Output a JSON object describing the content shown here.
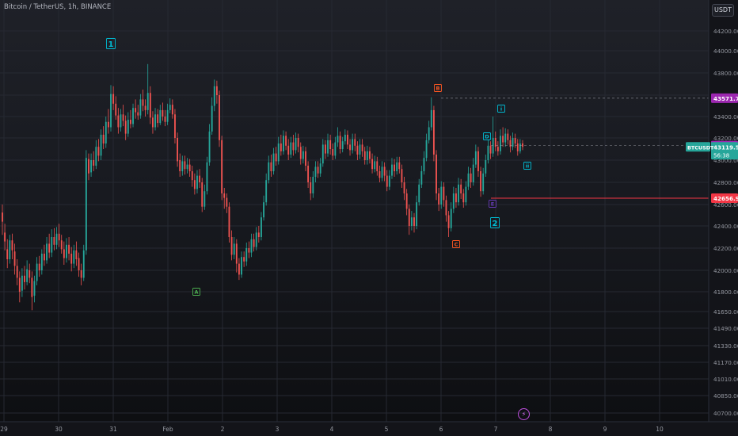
{
  "header": {
    "symbol_title": "Bitcoin / TetherUS, 1h, BINANCE",
    "currency_button": "USDT",
    "event_icon": "lightning-icon"
  },
  "chart_data": {
    "type": "candlestick",
    "symbol": "BTCUSDT",
    "interval": "1h",
    "exchange": "BINANCE",
    "ylim": [
      40650,
      44400
    ],
    "y_ticks": [
      "44200.00",
      "44000.00",
      "43800.00",
      "43600.00",
      "43400.00",
      "43200.00",
      "43000.00",
      "42800.00",
      "42600.00",
      "42400.00",
      "42200.00",
      "42000.00",
      "41800.00",
      "41650.00",
      "41490.00",
      "41330.00",
      "41170.00",
      "41010.00",
      "40850.00",
      "40700.00"
    ],
    "x_ticks": [
      "29",
      "30",
      "31",
      "Feb",
      "2",
      "3",
      "4",
      "5",
      "6",
      "7",
      "8",
      "9",
      "10"
    ],
    "price_labels": [
      {
        "name": "resistance",
        "text": "43571.74",
        "color": "#9c27b0"
      },
      {
        "name": "level-mid",
        "text": "43131.10",
        "color": "#9c27b0"
      },
      {
        "name": "current",
        "text": "43119.52",
        "symbol": "BTCUSDT",
        "countdown": "56:38",
        "color": "#26a69a"
      },
      {
        "name": "support",
        "text": "42656.92",
        "color": "#f23645"
      }
    ],
    "wave_labels": [
      {
        "text": "1",
        "color": "#00bcd4"
      },
      {
        "text": "A",
        "color": "#4caf50"
      },
      {
        "text": "B",
        "color": "#ff5722"
      },
      {
        "text": "C",
        "color": "#ff5722"
      },
      {
        "text": "D",
        "color": "#00bcd4"
      },
      {
        "text": "E",
        "color": "#673ab7"
      },
      {
        "text": "2",
        "color": "#00bcd4"
      },
      {
        "text": "i",
        "color": "#00bcd4"
      },
      {
        "text": "ii",
        "color": "#00bcd4"
      }
    ],
    "candles": [
      [
        42525,
        42440,
        42600,
        42320
      ],
      [
        42340,
        42260,
        42420,
        42180
      ],
      [
        42190,
        42100,
        42280,
        42020
      ],
      [
        42100,
        42270,
        42320,
        42060
      ],
      [
        42270,
        42180,
        42330,
        42100
      ],
      [
        42170,
        42040,
        42240,
        41960
      ],
      [
        42040,
        41930,
        42100,
        41860
      ],
      [
        41930,
        41800,
        41990,
        41720
      ],
      [
        41810,
        41950,
        42020,
        41760
      ],
      [
        41950,
        41890,
        42040,
        41820
      ],
      [
        41890,
        42010,
        42090,
        41860
      ],
      [
        42000,
        41930,
        42060,
        41880
      ],
      [
        41930,
        41760,
        41990,
        41660
      ],
      [
        41770,
        41900,
        41950,
        41720
      ],
      [
        41900,
        42060,
        42120,
        41860
      ],
      [
        42060,
        42000,
        42130,
        41940
      ],
      [
        42000,
        42150,
        42190,
        41960
      ],
      [
        42150,
        42090,
        42230,
        42040
      ],
      [
        42090,
        42240,
        42300,
        42060
      ],
      [
        42240,
        42160,
        42330,
        42110
      ],
      [
        42160,
        42300,
        42370,
        42120
      ],
      [
        42300,
        42230,
        42380,
        42180
      ],
      [
        42230,
        42330,
        42390,
        42190
      ],
      [
        42330,
        42270,
        42420,
        42210
      ],
      [
        42270,
        42190,
        42320,
        42150
      ],
      [
        42190,
        42110,
        42260,
        42050
      ],
      [
        42110,
        42230,
        42290,
        42070
      ],
      [
        42230,
        42150,
        42300,
        42090
      ],
      [
        42150,
        42060,
        42210,
        41990
      ],
      [
        42060,
        42180,
        42230,
        42020
      ],
      [
        42180,
        42100,
        42260,
        42040
      ],
      [
        42110,
        42000,
        42160,
        41940
      ],
      [
        42000,
        41930,
        42060,
        41860
      ],
      [
        41930,
        42180,
        42230,
        41900
      ],
      [
        42180,
        43020,
        43090,
        42140
      ],
      [
        43010,
        42880,
        43060,
        42820
      ],
      [
        42890,
        43000,
        43060,
        42850
      ],
      [
        43000,
        42950,
        43080,
        42900
      ],
      [
        42950,
        43120,
        43180,
        42920
      ],
      [
        43120,
        43040,
        43190,
        42990
      ],
      [
        43040,
        43230,
        43280,
        43000
      ],
      [
        43230,
        43150,
        43310,
        43100
      ],
      [
        43150,
        43350,
        43400,
        43110
      ],
      [
        43350,
        43300,
        43470,
        43240
      ],
      [
        43300,
        43610,
        43690,
        43260
      ],
      [
        43610,
        43520,
        43680,
        43460
      ],
      [
        43520,
        43410,
        43590,
        43370
      ],
      [
        43410,
        43300,
        43480,
        43240
      ],
      [
        43300,
        43420,
        43470,
        43260
      ],
      [
        43420,
        43360,
        43510,
        43310
      ],
      [
        43360,
        43240,
        43410,
        43180
      ],
      [
        43240,
        43370,
        43440,
        43210
      ],
      [
        43370,
        43330,
        43460,
        43290
      ],
      [
        43330,
        43480,
        43520,
        43300
      ],
      [
        43480,
        43440,
        43560,
        43380
      ],
      [
        43440,
        43410,
        43510,
        43370
      ],
      [
        43410,
        43560,
        43610,
        43380
      ],
      [
        43560,
        43500,
        43650,
        43450
      ],
      [
        43500,
        43460,
        43560,
        43400
      ],
      [
        43460,
        43620,
        43880,
        43420
      ],
      [
        43620,
        43390,
        43680,
        43330
      ],
      [
        43390,
        43300,
        43450,
        43240
      ],
      [
        43300,
        43420,
        43480,
        43270
      ],
      [
        43420,
        43340,
        43470,
        43300
      ],
      [
        43340,
        43460,
        43510,
        43320
      ],
      [
        43460,
        43400,
        43530,
        43360
      ],
      [
        43400,
        43350,
        43460,
        43310
      ],
      [
        43350,
        43460,
        43520,
        43320
      ],
      [
        43460,
        43510,
        43570,
        43430
      ],
      [
        43510,
        43420,
        43560,
        43380
      ],
      [
        43420,
        43200,
        43470,
        43150
      ],
      [
        43200,
        42990,
        43250,
        42940
      ],
      [
        43000,
        42900,
        43060,
        42850
      ],
      [
        42900,
        42990,
        43040,
        42860
      ],
      [
        42990,
        42920,
        43040,
        42870
      ],
      [
        42920,
        42960,
        43020,
        42880
      ],
      [
        42960,
        42900,
        43010,
        42850
      ],
      [
        42900,
        42820,
        42950,
        42760
      ],
      [
        42820,
        42740,
        42880,
        42690
      ],
      [
        42740,
        42860,
        42910,
        42700
      ],
      [
        42860,
        42800,
        42920,
        42750
      ],
      [
        42800,
        42580,
        42840,
        42530
      ],
      [
        42580,
        42720,
        42780,
        42550
      ],
      [
        42720,
        42980,
        43030,
        42690
      ],
      [
        42980,
        43260,
        43330,
        42950
      ],
      [
        43260,
        43500,
        43580,
        43230
      ],
      [
        43500,
        43680,
        43740,
        43450
      ],
      [
        43680,
        43600,
        43730,
        43520
      ],
      [
        43600,
        43180,
        43640,
        43120
      ],
      [
        43180,
        42700,
        43220,
        42640
      ],
      [
        42700,
        42660,
        42750,
        42560
      ],
      [
        42660,
        42580,
        42700,
        42520
      ],
      [
        42580,
        42300,
        42620,
        42250
      ],
      [
        42300,
        42140,
        42360,
        42090
      ],
      [
        42140,
        42240,
        42300,
        42100
      ],
      [
        42240,
        42060,
        42280,
        41980
      ],
      [
        42060,
        41960,
        42110,
        41910
      ],
      [
        41960,
        42120,
        42170,
        41930
      ],
      [
        42120,
        42080,
        42170,
        42030
      ],
      [
        42080,
        42200,
        42250,
        42040
      ],
      [
        42200,
        42160,
        42260,
        42110
      ],
      [
        42160,
        42280,
        42330,
        42120
      ],
      [
        42280,
        42210,
        42330,
        42170
      ],
      [
        42210,
        42340,
        42390,
        42180
      ],
      [
        42340,
        42300,
        42400,
        42250
      ],
      [
        42300,
        42480,
        42530,
        42270
      ],
      [
        42480,
        42620,
        42680,
        42450
      ],
      [
        42620,
        42820,
        42880,
        42590
      ],
      [
        42820,
        42980,
        43040,
        42790
      ],
      [
        42980,
        42900,
        43050,
        42850
      ],
      [
        42900,
        43060,
        43110,
        42870
      ],
      [
        43060,
        42990,
        43120,
        42950
      ],
      [
        42990,
        43150,
        43210,
        42960
      ],
      [
        43150,
        43080,
        43230,
        43040
      ],
      [
        43080,
        43220,
        43270,
        43050
      ],
      [
        43220,
        43130,
        43260,
        43090
      ],
      [
        43130,
        43050,
        43190,
        43000
      ],
      [
        43050,
        43160,
        43210,
        43020
      ],
      [
        43160,
        43090,
        43230,
        43040
      ],
      [
        43090,
        43200,
        43250,
        43060
      ],
      [
        43200,
        43120,
        43240,
        43070
      ],
      [
        43120,
        43010,
        43160,
        42960
      ],
      [
        43010,
        43080,
        43130,
        42970
      ],
      [
        43080,
        42950,
        43120,
        42900
      ],
      [
        42950,
        42800,
        42990,
        42750
      ],
      [
        42800,
        42700,
        42850,
        42640
      ],
      [
        42700,
        42850,
        42900,
        42660
      ],
      [
        42850,
        42940,
        42990,
        42800
      ],
      [
        42940,
        42880,
        42990,
        42840
      ],
      [
        42880,
        42970,
        43020,
        42850
      ],
      [
        42970,
        43140,
        43190,
        42940
      ],
      [
        43140,
        43060,
        43180,
        43010
      ],
      [
        43060,
        43180,
        43240,
        43030
      ],
      [
        43180,
        43100,
        43230,
        43050
      ],
      [
        43100,
        43040,
        43150,
        43000
      ],
      [
        43040,
        43160,
        43210,
        43010
      ],
      [
        43160,
        43220,
        43300,
        43120
      ],
      [
        43220,
        43100,
        43260,
        43060
      ],
      [
        43100,
        43170,
        43210,
        43070
      ],
      [
        43170,
        43230,
        43280,
        43140
      ],
      [
        43230,
        43140,
        43270,
        43100
      ],
      [
        43140,
        43090,
        43190,
        43040
      ],
      [
        43090,
        43190,
        43240,
        43060
      ],
      [
        43190,
        43130,
        43240,
        43080
      ],
      [
        43130,
        43050,
        43170,
        43000
      ],
      [
        43050,
        43140,
        43190,
        43010
      ],
      [
        43140,
        43080,
        43190,
        43030
      ],
      [
        43080,
        43000,
        43120,
        42960
      ],
      [
        43000,
        43080,
        43130,
        42960
      ],
      [
        43080,
        43010,
        43120,
        42970
      ],
      [
        43010,
        42920,
        43060,
        42880
      ],
      [
        42920,
        42990,
        43040,
        42890
      ],
      [
        42990,
        42900,
        43030,
        42860
      ],
      [
        42900,
        42840,
        42950,
        42800
      ],
      [
        42840,
        42940,
        42990,
        42810
      ],
      [
        42940,
        42860,
        42980,
        42810
      ],
      [
        42860,
        42760,
        42910,
        42720
      ],
      [
        42760,
        42860,
        42910,
        42730
      ],
      [
        42860,
        42960,
        43020,
        42830
      ],
      [
        42960,
        42900,
        43010,
        42850
      ],
      [
        42900,
        42980,
        43030,
        42870
      ],
      [
        42980,
        42920,
        43030,
        42880
      ],
      [
        42920,
        42800,
        42960,
        42750
      ],
      [
        42800,
        42700,
        42850,
        42640
      ],
      [
        42700,
        42560,
        42740,
        42500
      ],
      [
        42560,
        42400,
        42600,
        42320
      ],
      [
        42400,
        42480,
        42540,
        42360
      ],
      [
        42480,
        42400,
        42520,
        42340
      ],
      [
        42400,
        42620,
        42680,
        42370
      ],
      [
        42620,
        42780,
        42830,
        42590
      ],
      [
        42780,
        42900,
        42950,
        42750
      ],
      [
        42900,
        43020,
        43080,
        42870
      ],
      [
        43020,
        43180,
        43240,
        42990
      ],
      [
        43180,
        43300,
        43360,
        43150
      ],
      [
        43300,
        43460,
        43580,
        43270
      ],
      [
        43460,
        43050,
        43500,
        42990
      ],
      [
        43050,
        42700,
        43090,
        42640
      ],
      [
        42700,
        42600,
        42750,
        42540
      ],
      [
        42600,
        42760,
        42810,
        42560
      ],
      [
        42760,
        42640,
        42800,
        42580
      ],
      [
        42640,
        42500,
        42680,
        42440
      ],
      [
        42500,
        42380,
        42540,
        42300
      ],
      [
        42380,
        42560,
        42620,
        42350
      ],
      [
        42560,
        42700,
        42760,
        42520
      ],
      [
        42700,
        42620,
        42750,
        42570
      ],
      [
        42620,
        42780,
        42840,
        42590
      ],
      [
        42780,
        42700,
        42830,
        42650
      ],
      [
        42700,
        42620,
        42740,
        42570
      ],
      [
        42620,
        42760,
        42810,
        42590
      ],
      [
        42760,
        42880,
        42940,
        42730
      ],
      [
        42880,
        42800,
        42930,
        42750
      ],
      [
        42800,
        42960,
        43020,
        42770
      ],
      [
        42960,
        43080,
        43140,
        42930
      ],
      [
        43080,
        42900,
        43120,
        42850
      ],
      [
        42900,
        42720,
        42940,
        42670
      ],
      [
        42720,
        42880,
        42930,
        42690
      ],
      [
        42880,
        43000,
        43050,
        42850
      ],
      [
        43000,
        43130,
        43180,
        42970
      ],
      [
        43130,
        43060,
        43170,
        43010
      ],
      [
        43060,
        43200,
        43400,
        43030
      ],
      [
        43200,
        43120,
        43260,
        43080
      ],
      [
        43120,
        43080,
        43170,
        43040
      ],
      [
        43080,
        43220,
        43280,
        43050
      ],
      [
        43220,
        43160,
        43300,
        43120
      ],
      [
        43160,
        43240,
        43290,
        43120
      ],
      [
        43240,
        43180,
        43280,
        43140
      ],
      [
        43180,
        43120,
        43220,
        43070
      ],
      [
        43120,
        43200,
        43250,
        43090
      ],
      [
        43200,
        43150,
        43240,
        43110
      ],
      [
        43150,
        43080,
        43190,
        43040
      ],
      [
        43080,
        43150,
        43190,
        43060
      ],
      [
        43150,
        43120,
        43180,
        43090
      ]
    ]
  }
}
